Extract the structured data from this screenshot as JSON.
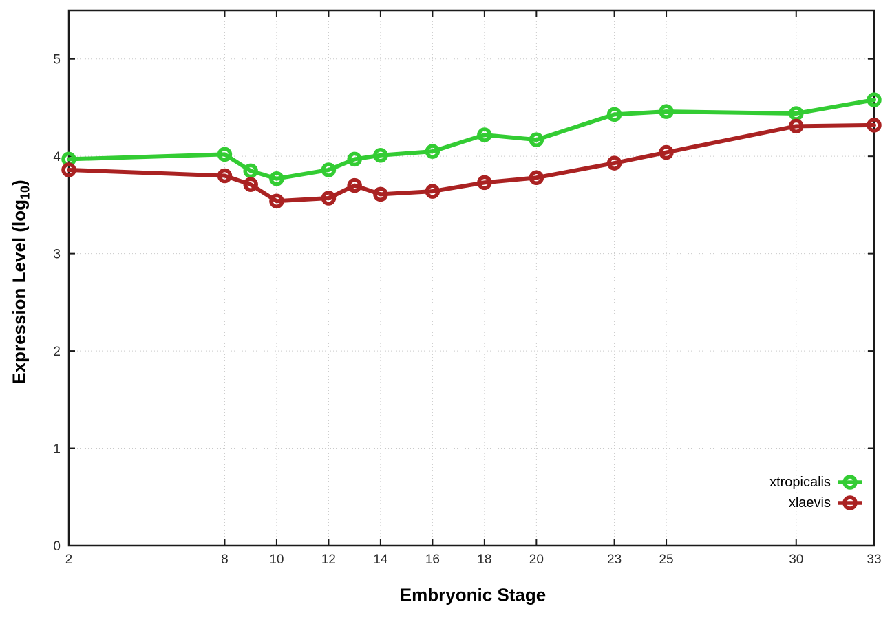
{
  "chart_data": {
    "type": "line",
    "title": "",
    "xlabel": "Embryonic Stage",
    "ylabel": {
      "text": "Expression Level (log",
      "sub": "10",
      "suffix": ")"
    },
    "x": [
      2,
      8,
      9,
      10,
      12,
      13,
      14,
      16,
      18,
      20,
      23,
      25,
      30,
      33
    ],
    "x_ticks": [
      2,
      8,
      10,
      12,
      14,
      16,
      18,
      20,
      23,
      25,
      30,
      33
    ],
    "y_ticks": [
      0,
      1,
      2,
      3,
      4,
      5
    ],
    "xlim": [
      2,
      33
    ],
    "ylim": [
      0,
      5.5
    ],
    "grid": true,
    "legend_position": "bottom-right",
    "series": [
      {
        "name": "xtropicalis",
        "color": "#33cc33",
        "values": [
          3.97,
          4.02,
          3.85,
          3.77,
          3.86,
          3.97,
          4.01,
          4.05,
          4.22,
          4.17,
          4.43,
          4.46,
          4.44,
          4.58
        ]
      },
      {
        "name": "xlaevis",
        "color": "#aa2222",
        "values": [
          3.86,
          3.8,
          3.71,
          3.54,
          3.57,
          3.7,
          3.61,
          3.64,
          3.73,
          3.78,
          3.93,
          4.04,
          4.31,
          4.32
        ]
      }
    ],
    "colors": {
      "background": "#ffffff",
      "axis": "#1a1a1a",
      "gridline": "#c9c9c9",
      "tick_label": "#2b2b2b"
    }
  }
}
